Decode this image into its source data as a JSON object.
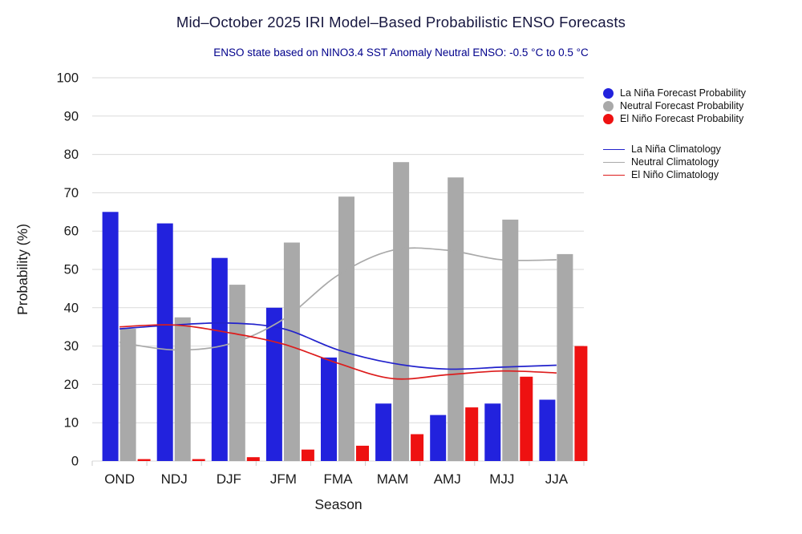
{
  "header": {
    "title": "Mid–October 2025 IRI Model–Based Probabilistic ENSO Forecasts",
    "subtitle": "ENSO state based on NINO3.4 SST Anomaly Neutral ENSO: -0.5 °C to 0.5 °C"
  },
  "axes": {
    "x_label": "Season",
    "y_label": "Probability (%)",
    "y_ticks": [
      0,
      10,
      20,
      30,
      40,
      50,
      60,
      70,
      80,
      90,
      100
    ]
  },
  "legend": {
    "dot_items": [
      {
        "id": "la-nina-forecast",
        "label": "La Niña Forecast Probability",
        "color": "#2222dd"
      },
      {
        "id": "neutral-forecast",
        "label": "Neutral Forecast Probability",
        "color": "#a9a9a9"
      },
      {
        "id": "el-nino-forecast",
        "label": "El Niño Forecast Probability",
        "color": "#ee1111"
      }
    ],
    "line_items": [
      {
        "id": "la-nina-climatology",
        "label": "La Niña Climatology",
        "color": "#2222cc"
      },
      {
        "id": "neutral-climatology",
        "label": "Neutral Climatology",
        "color": "#a9a9a9"
      },
      {
        "id": "el-nino-climatology",
        "label": "El Niño Climatology",
        "color": "#dd1c1c"
      }
    ]
  },
  "chart_data": {
    "type": "bar",
    "title": "Mid–October 2025 IRI Model–Based Probabilistic ENSO Forecasts",
    "subtitle": "ENSO state based on NINO3.4 SST Anomaly Neutral ENSO: -0.5 °C to 0.5 °C",
    "xlabel": "Season",
    "ylabel": "Probability (%)",
    "ylim": [
      0,
      100
    ],
    "grid": true,
    "legend_position": "right",
    "categories": [
      "OND",
      "NDJ",
      "DJF",
      "JFM",
      "FMA",
      "MAM",
      "AMJ",
      "MJJ",
      "JJA"
    ],
    "series": [
      {
        "id": "la-nina-bars",
        "name": "La Niña Forecast Probability",
        "kind": "bar",
        "color": "#2222dd",
        "values": [
          65,
          62,
          53,
          40,
          27,
          15,
          12,
          15,
          16
        ]
      },
      {
        "id": "neutral-bars",
        "name": "Neutral Forecast Probability",
        "kind": "bar",
        "color": "#a9a9a9",
        "values": [
          34.5,
          37.5,
          46,
          57,
          69,
          78,
          74,
          63,
          54
        ]
      },
      {
        "id": "el-nino-bars",
        "name": "El Niño Forecast Probability",
        "kind": "bar",
        "color": "#ee1111",
        "values": [
          0.5,
          0.5,
          1,
          3,
          4,
          7,
          14,
          22,
          30
        ]
      },
      {
        "id": "la-nina-climatology-line",
        "name": "La Niña Climatology",
        "kind": "line",
        "color": "#2222cc",
        "values": [
          34.5,
          35.5,
          36,
          34.5,
          29,
          25.5,
          24,
          24.5,
          25
        ]
      },
      {
        "id": "neutral-climatology-line",
        "name": "Neutral Climatology",
        "kind": "line",
        "color": "#a9a9a9",
        "values": [
          31,
          29,
          30.5,
          37,
          48.5,
          55,
          55,
          52.5,
          52.5
        ]
      },
      {
        "id": "el-nino-climatology-line",
        "name": "El Niño Climatology",
        "kind": "line",
        "color": "#dd1c1c",
        "values": [
          35,
          35.5,
          33.5,
          30.5,
          25.5,
          21.5,
          22.5,
          23.5,
          23
        ]
      }
    ]
  }
}
